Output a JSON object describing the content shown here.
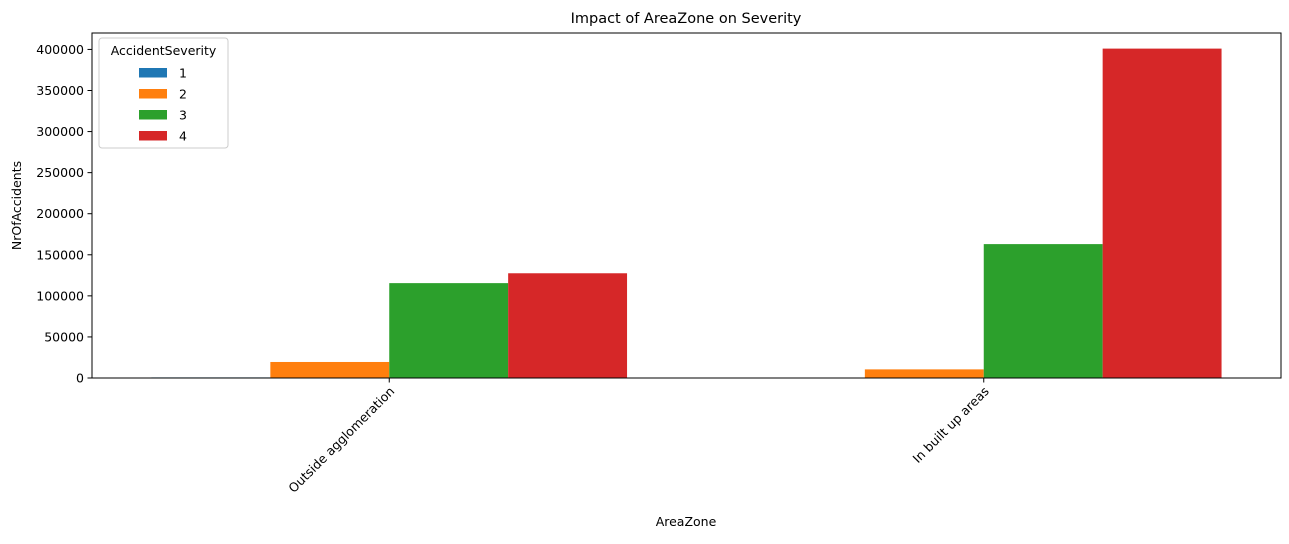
{
  "chart_data": {
    "type": "bar",
    "title": "Impact of AreaZone on Severity",
    "xlabel": "AreaZone",
    "ylabel": "NrOfAccidents",
    "categories": [
      "Outside agglomeration",
      "In built up areas"
    ],
    "series": [
      {
        "name": "1",
        "color": "#1f77b4",
        "values": [
          700,
          500
        ]
      },
      {
        "name": "2",
        "color": "#ff7f0e",
        "values": [
          19500,
          10500
        ]
      },
      {
        "name": "3",
        "color": "#2ca02c",
        "values": [
          115500,
          163000
        ]
      },
      {
        "name": "4",
        "color": "#d62728",
        "values": [
          127500,
          401000
        ]
      }
    ],
    "ylim": [
      0,
      420000
    ],
    "yticks": [
      0,
      50000,
      100000,
      150000,
      200000,
      250000,
      300000,
      350000,
      400000
    ],
    "ytick_labels": [
      "0",
      "50000",
      "100000",
      "150000",
      "200000",
      "250000",
      "300000",
      "350000",
      "400000"
    ],
    "grid": false,
    "legend": {
      "title": "AccidentSeverity",
      "position": "top-left"
    }
  }
}
